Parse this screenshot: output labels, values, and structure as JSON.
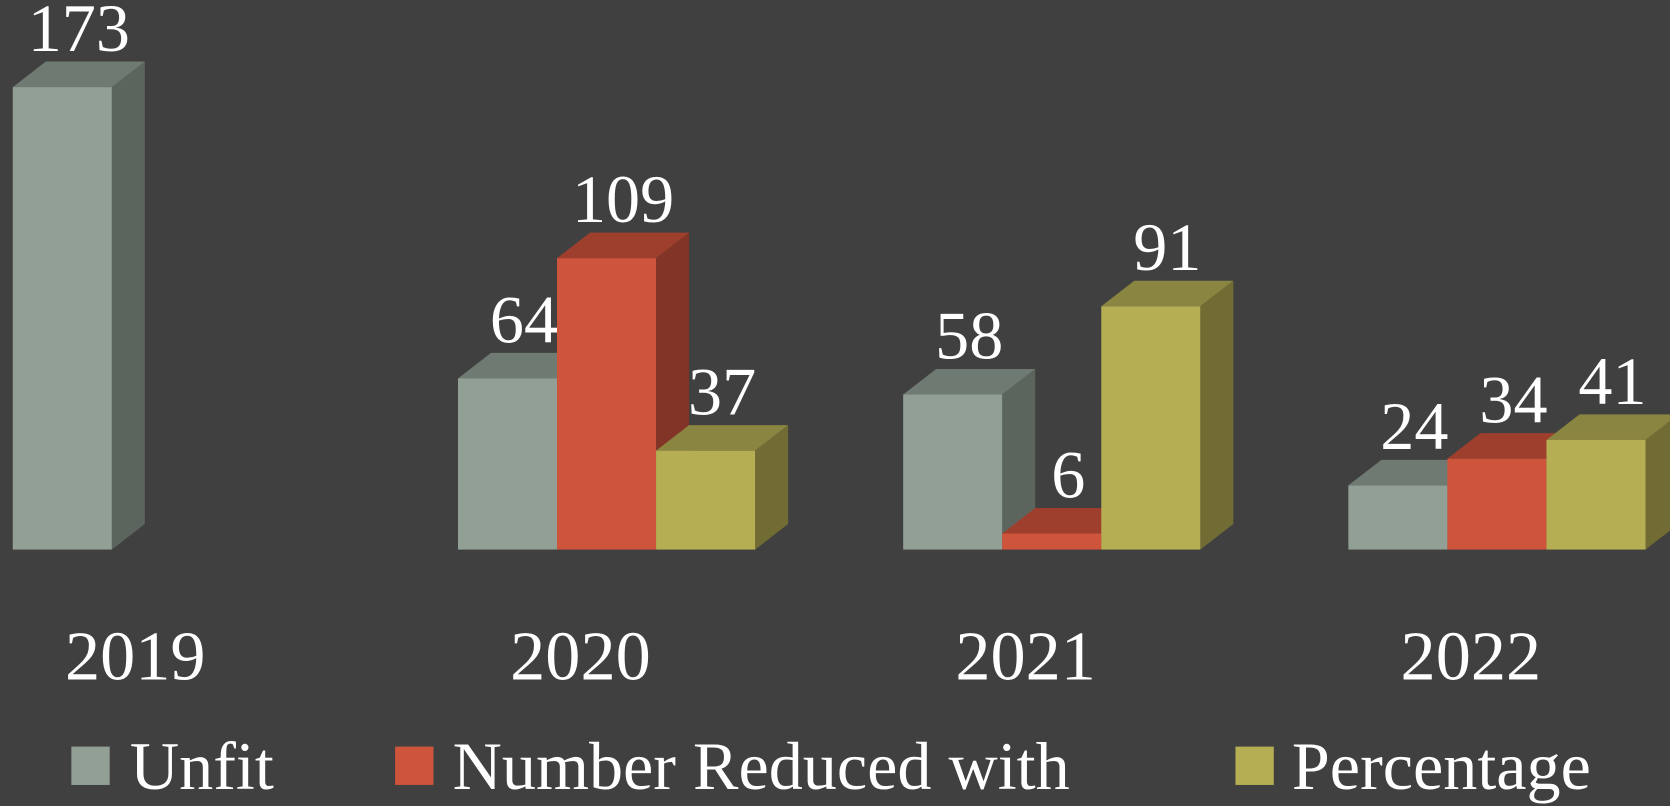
{
  "chart_data": {
    "type": "bar3d",
    "categories": [
      "2019",
      "2020",
      "2021",
      "2022"
    ],
    "series": [
      {
        "name": "Unfit",
        "color": "#929f95",
        "top_color": "#6f7b72",
        "side_color": "#5c645e",
        "values": [
          173,
          64,
          58,
          24
        ]
      },
      {
        "name": "Number Reduced with",
        "color": "#cf543c",
        "top_color": "#9e3f2d",
        "side_color": "#823426",
        "values": [
          null,
          109,
          6,
          34
        ]
      },
      {
        "name": "Percentage",
        "color": "#b5ae52",
        "top_color": "#8a8540",
        "side_color": "#706c34",
        "values": [
          null,
          37,
          91,
          41
        ]
      }
    ],
    "background": "#404040"
  }
}
